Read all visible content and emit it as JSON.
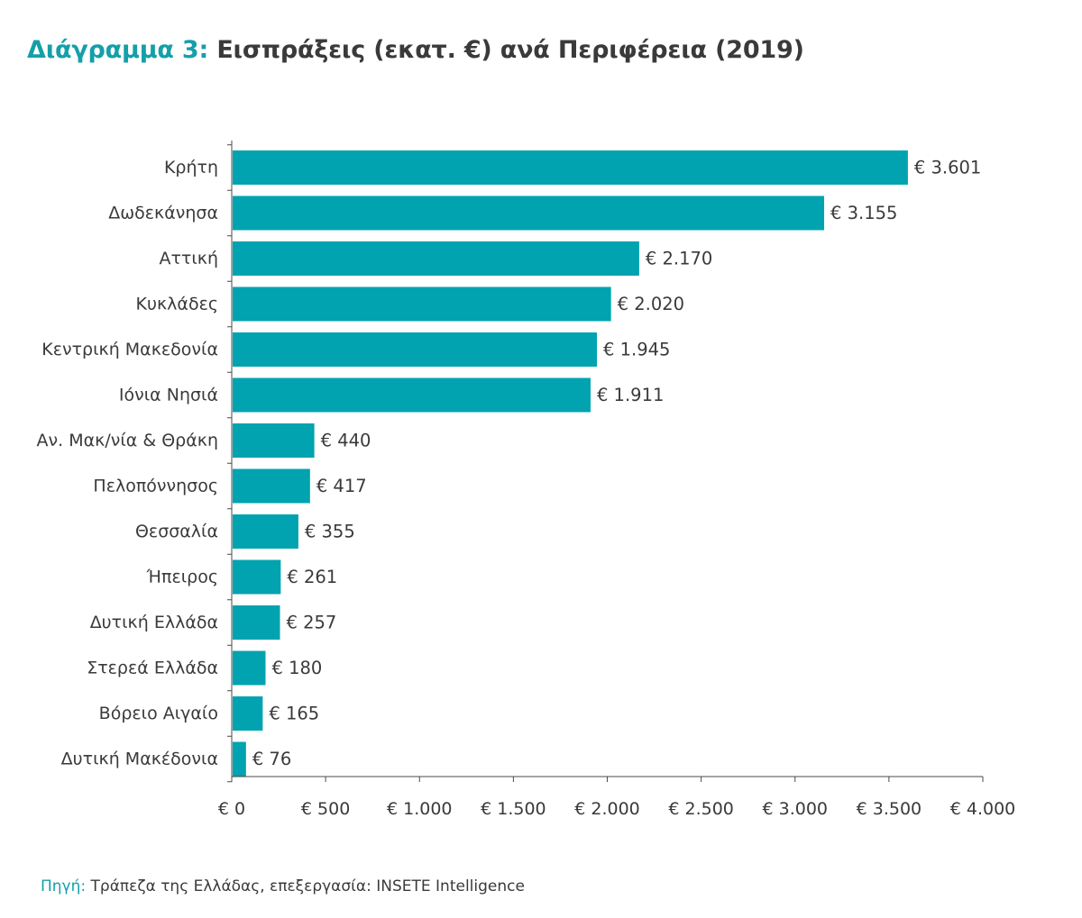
{
  "title": {
    "prefix": "Διάγραμμα 3:",
    "main": "Εισπράξεις (εκατ. €) ανά Περιφέρεια (2019)"
  },
  "source": {
    "prefix": "Πηγή:",
    "text": "Τράπεζα της Ελλάδας, επεξεργασία: INSETE Intelligence"
  },
  "colors": {
    "bar": "#00a3af",
    "accent": "#159fa9",
    "text": "#3a3a3a",
    "axis": "#4a4a4a"
  },
  "chart_data": {
    "type": "bar",
    "orientation": "horizontal",
    "title": "Εισπράξεις (εκατ. €) ανά Περιφέρεια (2019)",
    "categories": [
      "Κρήτη",
      "Δωδεκάνησα",
      "Αττική",
      "Κυκλάδες",
      "Κεντρική Μακεδονία",
      "Ιόνια Νησιά",
      "Αν. Μακ/νία & Θράκη",
      "Πελοπόννησος",
      "Θεσσαλία",
      "Ήπειρος",
      "Δυτική Ελλάδα",
      "Στερεά Ελλάδα",
      "Βόρειο Αιγαίο",
      "Δυτική Μακέδονια"
    ],
    "values": [
      3601,
      3155,
      2170,
      2020,
      1945,
      1911,
      440,
      417,
      355,
      261,
      257,
      180,
      165,
      76
    ],
    "value_labels": [
      "€ 3.601",
      "€ 3.155",
      "€ 2.170",
      "€ 2.020",
      "€ 1.945",
      "€ 1.911",
      "€ 440",
      "€ 417",
      "€ 355",
      "€ 261",
      "€ 257",
      "€ 180",
      "€ 165",
      "€ 76"
    ],
    "xlim": [
      0,
      4000
    ],
    "xticks": [
      0,
      500,
      1000,
      1500,
      2000,
      2500,
      3000,
      3500,
      4000
    ],
    "xtick_labels": [
      "€ 0",
      "€ 500",
      "€ 1.000",
      "€ 1.500",
      "€ 2.000",
      "€ 2.500",
      "€ 3.000",
      "€ 3.500",
      "€ 4.000"
    ],
    "xlabel": "",
    "ylabel": "",
    "grid": false,
    "legend": "none"
  }
}
